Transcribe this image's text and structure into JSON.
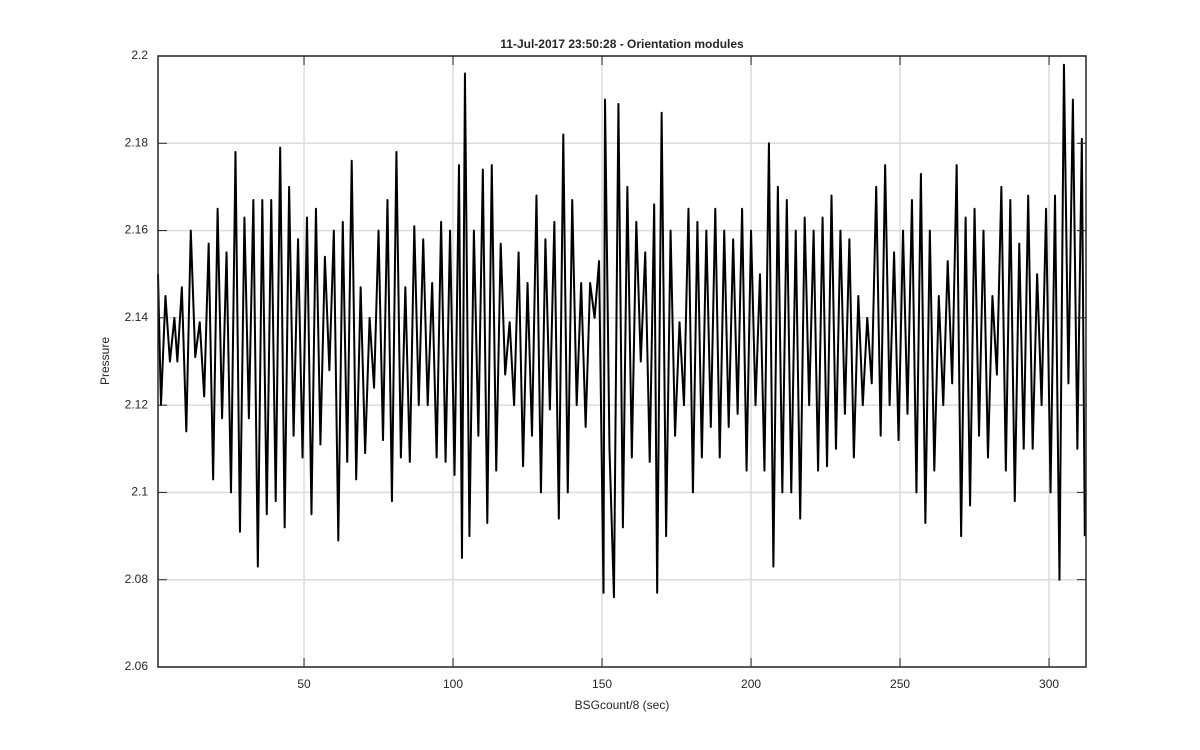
{
  "chart_data": {
    "type": "line",
    "title": "11-Jul-2017 23:50:28 - Orientation modules",
    "x_label": "BSGcount/8 (sec)",
    "y_label": "Pressure",
    "x": [
      1,
      2,
      3.5,
      5,
      6.5,
      7.5,
      9,
      10.5,
      12,
      13.5,
      15,
      16.5,
      18,
      19.5,
      21,
      22.5,
      24,
      25.5,
      27,
      28.5,
      30,
      31.5,
      33,
      34.5,
      36,
      37.5,
      39,
      40.5,
      42,
      43.5,
      45,
      46.5,
      48,
      49.5,
      51,
      52.5,
      54,
      55.5,
      57,
      58.5,
      60,
      61.5,
      63,
      64.5,
      66,
      67.5,
      69,
      70.5,
      72,
      73.5,
      75,
      76.5,
      78,
      79.5,
      81,
      82.5,
      84,
      85.5,
      87,
      88.5,
      90,
      91.5,
      93,
      94.5,
      96,
      97.5,
      99,
      100.5,
      102,
      103,
      104,
      105.5,
      107,
      108.5,
      110,
      111.5,
      113,
      114.5,
      116,
      117.5,
      119,
      120.5,
      122,
      123.5,
      125,
      126.5,
      128,
      129.5,
      131,
      132.5,
      134,
      135.5,
      137,
      138.5,
      140,
      141.5,
      143,
      144.5,
      146,
      147.5,
      149,
      150.5,
      151,
      152.5,
      154,
      155.5,
      157,
      158.5,
      160,
      161.5,
      163,
      164.5,
      166,
      167.5,
      168.5,
      170,
      171.5,
      173,
      174.5,
      176,
      177.5,
      179,
      180.5,
      182,
      183.5,
      185,
      186.5,
      188,
      189.5,
      191,
      192.5,
      194,
      195.5,
      197,
      198.5,
      200,
      201.5,
      203,
      204.5,
      206,
      207.5,
      209,
      210.5,
      212,
      213.5,
      215,
      216.5,
      218,
      219.5,
      221,
      222.5,
      224,
      225.5,
      227,
      228.5,
      230,
      231.5,
      233,
      234.5,
      236,
      237.5,
      239,
      240.5,
      242,
      243.5,
      245,
      246.5,
      248,
      249.5,
      251,
      252.5,
      254,
      255.5,
      257,
      258.5,
      260,
      261.5,
      263,
      264.5,
      266,
      267.5,
      269,
      270.5,
      272,
      273.5,
      275,
      276.5,
      278,
      279.5,
      281,
      282.5,
      284,
      285.5,
      287,
      288.5,
      290,
      291.5,
      293,
      294.5,
      296,
      297.5,
      299,
      300.5,
      302,
      303.5,
      305,
      306.5,
      308,
      309.5,
      311,
      312
    ],
    "series": [
      {
        "color": "#000000",
        "values": [
          2.15,
          2.12,
          2.145,
          2.13,
          2.14,
          2.13,
          2.147,
          2.114,
          2.16,
          2.131,
          2.139,
          2.122,
          2.157,
          2.103,
          2.165,
          2.117,
          2.155,
          2.1,
          2.178,
          2.091,
          2.163,
          2.117,
          2.167,
          2.083,
          2.167,
          2.095,
          2.167,
          2.098,
          2.179,
          2.092,
          2.17,
          2.113,
          2.158,
          2.108,
          2.163,
          2.095,
          2.165,
          2.111,
          2.154,
          2.128,
          2.16,
          2.089,
          2.162,
          2.107,
          2.176,
          2.103,
          2.147,
          2.109,
          2.14,
          2.124,
          2.16,
          2.112,
          2.167,
          2.098,
          2.178,
          2.108,
          2.147,
          2.107,
          2.161,
          2.12,
          2.158,
          2.12,
          2.148,
          2.108,
          2.162,
          2.107,
          2.16,
          2.104,
          2.175,
          2.085,
          2.196,
          2.09,
          2.16,
          2.113,
          2.174,
          2.093,
          2.175,
          2.105,
          2.157,
          2.127,
          2.139,
          2.12,
          2.155,
          2.106,
          2.148,
          2.113,
          2.168,
          2.1,
          2.158,
          2.119,
          2.162,
          2.094,
          2.182,
          2.1,
          2.167,
          2.12,
          2.148,
          2.115,
          2.148,
          2.14,
          2.153,
          2.077,
          2.19,
          2.11,
          2.076,
          2.189,
          2.092,
          2.17,
          2.108,
          2.162,
          2.13,
          2.155,
          2.107,
          2.166,
          2.077,
          2.187,
          2.09,
          2.16,
          2.113,
          2.139,
          2.12,
          2.165,
          2.1,
          2.162,
          2.108,
          2.16,
          2.115,
          2.165,
          2.108,
          2.16,
          2.115,
          2.158,
          2.118,
          2.165,
          2.105,
          2.16,
          2.12,
          2.15,
          2.105,
          2.18,
          2.083,
          2.17,
          2.1,
          2.167,
          2.1,
          2.16,
          2.094,
          2.163,
          2.12,
          2.16,
          2.105,
          2.163,
          2.106,
          2.168,
          2.11,
          2.16,
          2.118,
          2.158,
          2.108,
          2.145,
          2.12,
          2.14,
          2.125,
          2.17,
          2.113,
          2.175,
          2.12,
          2.155,
          2.112,
          2.16,
          2.118,
          2.167,
          2.1,
          2.173,
          2.093,
          2.16,
          2.105,
          2.145,
          2.12,
          2.153,
          2.125,
          2.175,
          2.09,
          2.163,
          2.097,
          2.165,
          2.113,
          2.16,
          2.108,
          2.145,
          2.127,
          2.17,
          2.105,
          2.167,
          2.098,
          2.157,
          2.11,
          2.168,
          2.11,
          2.15,
          2.12,
          2.165,
          2.1,
          2.168,
          2.08,
          2.198,
          2.125,
          2.19,
          2.11,
          2.181,
          2.09
        ]
      }
    ],
    "xlim": [
      1,
      312.4
    ],
    "ylim": [
      2.06,
      2.2
    ],
    "xticks": [
      50,
      100,
      150,
      200,
      250,
      300
    ],
    "yticks": [
      2.06,
      2.08,
      2.1,
      2.12,
      2.14,
      2.16,
      2.18,
      2.2
    ],
    "grid": true
  }
}
